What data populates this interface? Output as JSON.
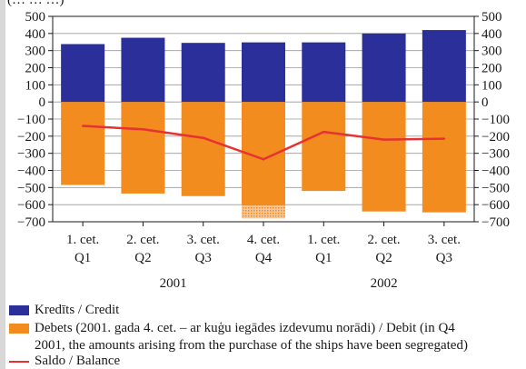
{
  "header_fragment": "(… … …)",
  "chart_data": {
    "type": "bar",
    "categories": [
      {
        "quarter": "1. cet.",
        "q": "Q1",
        "year": "2001"
      },
      {
        "quarter": "2. cet.",
        "q": "Q2",
        "year": "2001"
      },
      {
        "quarter": "3. cet.",
        "q": "Q3",
        "year": "2001"
      },
      {
        "quarter": "4. cet.",
        "q": "Q4",
        "year": "2001"
      },
      {
        "quarter": "1. cet.",
        "q": "Q1",
        "year": "2002"
      },
      {
        "quarter": "2. cet.",
        "q": "Q2",
        "year": "2002"
      },
      {
        "quarter": "3. cet.",
        "q": "Q3",
        "year": "2002"
      }
    ],
    "years": [
      "2001",
      "2002"
    ],
    "yticks": [
      500,
      400,
      300,
      200,
      100,
      0,
      -100,
      -200,
      -300,
      -400,
      -500,
      -600,
      -700
    ],
    "ylim": [
      -700,
      500
    ],
    "grid": true,
    "series": [
      {
        "name": "Kredīts / Credit",
        "type": "bar",
        "color": "#2b2f9a",
        "values": [
          338,
          375,
          345,
          348,
          348,
          400,
          420
        ]
      },
      {
        "name": "Debets (2001. gada 4. cet. – ar kuģu iegādes izdevumu norādi) / Debit (in Q4 2001, the amounts arising from the purchase of the ships have been segregated)",
        "type": "bar",
        "color": "#f28c1e",
        "values": [
          -485,
          -535,
          -550,
          -605,
          -520,
          -640,
          -645
        ],
        "segregated": [
          0,
          0,
          0,
          -75,
          0,
          0,
          0
        ]
      },
      {
        "name": "Saldo / Balance",
        "type": "line",
        "color": "#e63232",
        "values": [
          -140,
          -160,
          -210,
          -335,
          -175,
          -220,
          -215
        ]
      }
    ]
  },
  "legend": {
    "credit": "Kredīts / Credit",
    "debit_line1": "Debets (2001. gada 4. cet. – ar kuģu iegādes izdevumu norādi) / Debit (in Q4",
    "debit_line2": "2001, the amounts arising from the purchase of the ships have been segregated)",
    "balance": "Saldo / Balance"
  }
}
